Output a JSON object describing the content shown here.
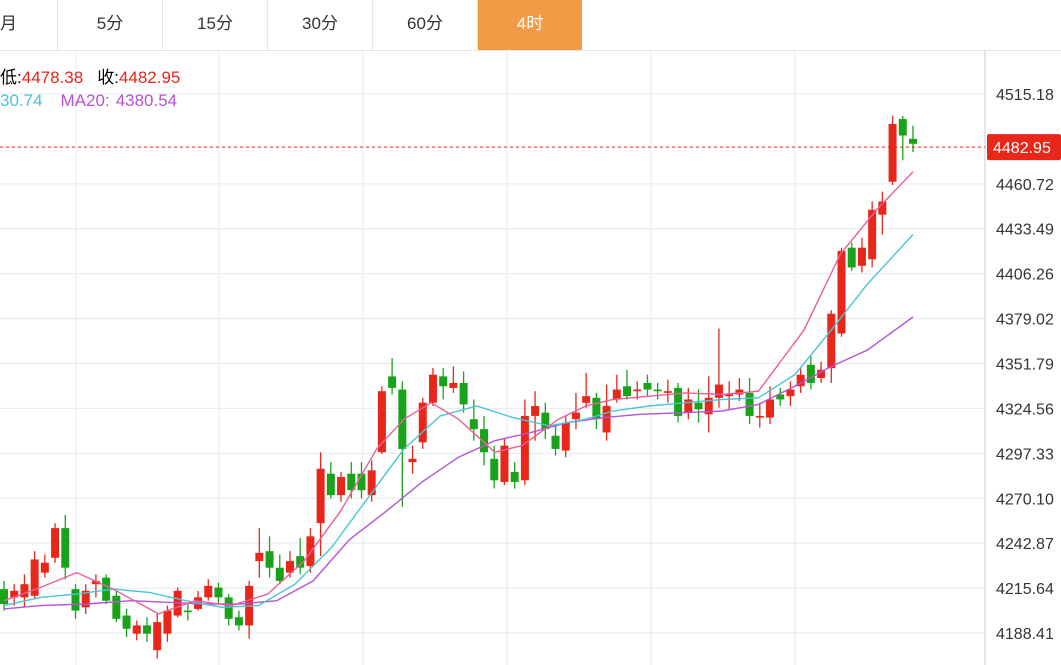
{
  "tabs": [
    {
      "label": "月",
      "active": false
    },
    {
      "label": "5分",
      "active": false
    },
    {
      "label": "15分",
      "active": false
    },
    {
      "label": "30分",
      "active": false
    },
    {
      "label": "60分",
      "active": false
    },
    {
      "label": "4时",
      "active": true
    }
  ],
  "info": {
    "low_label": "低:",
    "low_value": "4478.38",
    "close_label": "收:",
    "close_value": "4482.95",
    "ma10_value": "30.74",
    "ma20_label": "MA20:",
    "ma20_value": "4380.54"
  },
  "current_price": "4482.95",
  "colors": {
    "up": "#e8261a",
    "down": "#1aa31a",
    "ma5": "#e9609a",
    "ma10": "#4ac4d7",
    "ma20": "#b754d3",
    "accent": "#f39a46",
    "price_tag": "#e8261a"
  },
  "chart_data": {
    "type": "candlestick",
    "y_ticks": [
      "4515.18",
      "4460.72",
      "4433.49",
      "4406.26",
      "4379.02",
      "4351.79",
      "4324.56",
      "4297.33",
      "4270.10",
      "4242.87",
      "4215.64",
      "4188.41"
    ],
    "ylim": [
      4175,
      4535
    ],
    "grid": true,
    "candles": [
      [
        4215,
        4206,
        4220,
        4202
      ],
      [
        4210,
        4214,
        4218,
        4205
      ],
      [
        4210,
        4218,
        4224,
        4204
      ],
      [
        4211,
        4233,
        4238,
        4209
      ],
      [
        4225,
        4231,
        4236,
        4222
      ],
      [
        4234,
        4252,
        4255,
        4231
      ],
      [
        4252,
        4228,
        4260,
        4221
      ],
      [
        4215,
        4202,
        4218,
        4197
      ],
      [
        4204,
        4214,
        4218,
        4200
      ],
      [
        4218,
        4220,
        4224,
        4210
      ],
      [
        4222,
        4208,
        4224,
        4206
      ],
      [
        4211,
        4197,
        4214,
        4195
      ],
      [
        4199,
        4191,
        4203,
        4186
      ],
      [
        4188,
        4193,
        4196,
        4184
      ],
      [
        4193,
        4188,
        4198,
        4183
      ],
      [
        4178,
        4195,
        4200,
        4173
      ],
      [
        4188,
        4202,
        4205,
        4183
      ],
      [
        4199,
        4214,
        4216,
        4198
      ],
      [
        4202,
        4201,
        4206,
        4196
      ],
      [
        4203,
        4210,
        4214,
        4202
      ],
      [
        4210,
        4217,
        4221,
        4208
      ],
      [
        4216,
        4210,
        4219,
        4206
      ],
      [
        4210,
        4197,
        4212,
        4193
      ],
      [
        4198,
        4193,
        4202,
        4190
      ],
      [
        4193,
        4217,
        4220,
        4185
      ],
      [
        4232,
        4237,
        4252,
        4222
      ],
      [
        4238,
        4228,
        4247,
        4222
      ],
      [
        4228,
        4220,
        4236,
        4218
      ],
      [
        4225,
        4232,
        4238,
        4222
      ],
      [
        4235,
        4228,
        4246,
        4224
      ],
      [
        4229,
        4247,
        4252,
        4225
      ],
      [
        4255,
        4288,
        4298,
        4235
      ],
      [
        4285,
        4272,
        4292,
        4270
      ],
      [
        4272,
        4283,
        4286,
        4268
      ],
      [
        4285,
        4275,
        4292,
        4270
      ],
      [
        4285,
        4275,
        4292,
        4270
      ],
      [
        4272,
        4287,
        4293,
        4268
      ],
      [
        4298,
        4335,
        4338,
        4297
      ],
      [
        4344,
        4337,
        4355,
        4333
      ],
      [
        4336,
        4300,
        4341,
        4265
      ],
      [
        4292,
        4294,
        4302,
        4285
      ],
      [
        4304,
        4328,
        4331,
        4300
      ],
      [
        4328,
        4345,
        4349,
        4326
      ],
      [
        4344,
        4338,
        4349,
        4330
      ],
      [
        4337,
        4340,
        4350,
        4334
      ],
      [
        4340,
        4327,
        4347,
        4322
      ],
      [
        4318,
        4312,
        4330,
        4305
      ],
      [
        4312,
        4298,
        4320,
        4290
      ],
      [
        4294,
        4281,
        4302,
        4276
      ],
      [
        4280,
        4302,
        4306,
        4278
      ],
      [
        4286,
        4280,
        4292,
        4276
      ],
      [
        4281,
        4320,
        4330,
        4278
      ],
      [
        4320,
        4326,
        4335,
        4305
      ],
      [
        4322,
        4312,
        4328,
        4306
      ],
      [
        4308,
        4300,
        4315,
        4296
      ],
      [
        4299,
        4316,
        4320,
        4295
      ],
      [
        4318,
        4322,
        4334,
        4312
      ],
      [
        4328,
        4332,
        4346,
        4325
      ],
      [
        4331,
        4318,
        4334,
        4312
      ],
      [
        4310,
        4326,
        4339,
        4305
      ],
      [
        4330,
        4336,
        4345,
        4328
      ],
      [
        4338,
        4332,
        4348,
        4330
      ],
      [
        4335,
        4336,
        4341,
        4330
      ],
      [
        4340,
        4336,
        4345,
        4332
      ],
      [
        4336,
        4335,
        4340,
        4330
      ],
      [
        4334,
        4335,
        4342,
        4328
      ],
      [
        4337,
        4320,
        4340,
        4316
      ],
      [
        4322,
        4330,
        4337,
        4318
      ],
      [
        4328,
        4324,
        4336,
        4316
      ],
      [
        4321,
        4331,
        4344,
        4310
      ],
      [
        4331,
        4339,
        4373,
        4325
      ],
      [
        4332,
        4333,
        4341,
        4324
      ],
      [
        4333,
        4336,
        4343,
        4329
      ],
      [
        4334,
        4320,
        4343,
        4315
      ],
      [
        4319,
        4320,
        4328,
        4313
      ],
      [
        4319,
        4330,
        4338,
        4315
      ],
      [
        4333,
        4330,
        4337,
        4326
      ],
      [
        4332,
        4336,
        4341,
        4326
      ],
      [
        4338,
        4345,
        4349,
        4334
      ],
      [
        4351,
        4340,
        4356,
        4336
      ],
      [
        4343,
        4348,
        4353,
        4340
      ],
      [
        4349,
        4382,
        4384,
        4340
      ],
      [
        4370,
        4420,
        4422,
        4368
      ],
      [
        4422,
        4410,
        4425,
        4408
      ],
      [
        4411,
        4422,
        4428,
        4407
      ],
      [
        4415,
        4445,
        4450,
        4410
      ],
      [
        4442,
        4450,
        4456,
        4430
      ],
      [
        4462,
        4497,
        4502,
        4460
      ],
      [
        4500,
        4490,
        4502,
        4475
      ],
      [
        4488,
        4485,
        4496,
        4480
      ]
    ],
    "ma5": [
      [
        0,
        4208
      ],
      [
        4,
        4216
      ],
      [
        8,
        4225
      ],
      [
        12,
        4215
      ],
      [
        17,
        4200
      ],
      [
        21,
        4208
      ],
      [
        25,
        4205
      ],
      [
        29,
        4212
      ],
      [
        33,
        4232
      ],
      [
        37,
        4262
      ],
      [
        41,
        4300
      ],
      [
        44,
        4318
      ],
      [
        47,
        4328
      ],
      [
        50,
        4318
      ],
      [
        54,
        4298
      ],
      [
        57,
        4302
      ],
      [
        61,
        4318
      ],
      [
        64,
        4326
      ],
      [
        67,
        4330
      ],
      [
        71,
        4332
      ],
      [
        75,
        4334
      ],
      [
        79,
        4333
      ],
      [
        83,
        4335
      ],
      [
        88,
        4372
      ],
      [
        92,
        4418
      ],
      [
        96,
        4445
      ],
      [
        100,
        4468
      ]
    ],
    "ma10": [
      [
        0,
        4205
      ],
      [
        4,
        4210
      ],
      [
        8,
        4212
      ],
      [
        12,
        4215
      ],
      [
        16,
        4213
      ],
      [
        20,
        4208
      ],
      [
        24,
        4204
      ],
      [
        28,
        4205
      ],
      [
        32,
        4218
      ],
      [
        36,
        4240
      ],
      [
        40,
        4270
      ],
      [
        44,
        4300
      ],
      [
        48,
        4320
      ],
      [
        52,
        4326
      ],
      [
        56,
        4319
      ],
      [
        60,
        4314
      ],
      [
        64,
        4318
      ],
      [
        67,
        4323
      ],
      [
        71,
        4326
      ],
      [
        75,
        4328
      ],
      [
        79,
        4330
      ],
      [
        83,
        4331
      ],
      [
        87,
        4345
      ],
      [
        91,
        4372
      ],
      [
        95,
        4400
      ],
      [
        100,
        4430
      ]
    ],
    "ma20": [
      [
        0,
        4203
      ],
      [
        4,
        4205
      ],
      [
        9,
        4206
      ],
      [
        14,
        4208
      ],
      [
        18,
        4207
      ],
      [
        22,
        4206
      ],
      [
        26,
        4206
      ],
      [
        30,
        4208
      ],
      [
        34,
        4220
      ],
      [
        38,
        4245
      ],
      [
        42,
        4262
      ],
      [
        46,
        4280
      ],
      [
        50,
        4295
      ],
      [
        54,
        4305
      ],
      [
        58,
        4310
      ],
      [
        62,
        4316
      ],
      [
        66,
        4319
      ],
      [
        70,
        4321
      ],
      [
        75,
        4322
      ],
      [
        79,
        4323
      ],
      [
        83,
        4327
      ],
      [
        87,
        4338
      ],
      [
        91,
        4350
      ],
      [
        95,
        4360
      ],
      [
        100,
        4380
      ]
    ]
  }
}
